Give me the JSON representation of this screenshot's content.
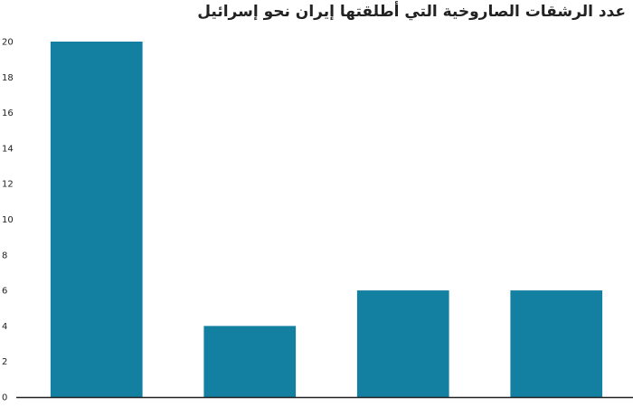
{
  "chart_data": {
    "type": "bar",
    "title": "عدد الرشقات الصاروخية التي أطلقتها إيران نحو إسرائيل",
    "categories": [
      "",
      "",
      "",
      ""
    ],
    "values": [
      20,
      4,
      6,
      6
    ],
    "xlabel": "",
    "ylabel": "",
    "ylim": [
      0,
      20
    ],
    "yticks": [
      0,
      2,
      4,
      6,
      8,
      10,
      12,
      14,
      16,
      18,
      20
    ],
    "grid": false,
    "legend": "none",
    "colors": {
      "bar": "#1380a1",
      "axis": "#222222",
      "text": "#222222"
    }
  }
}
